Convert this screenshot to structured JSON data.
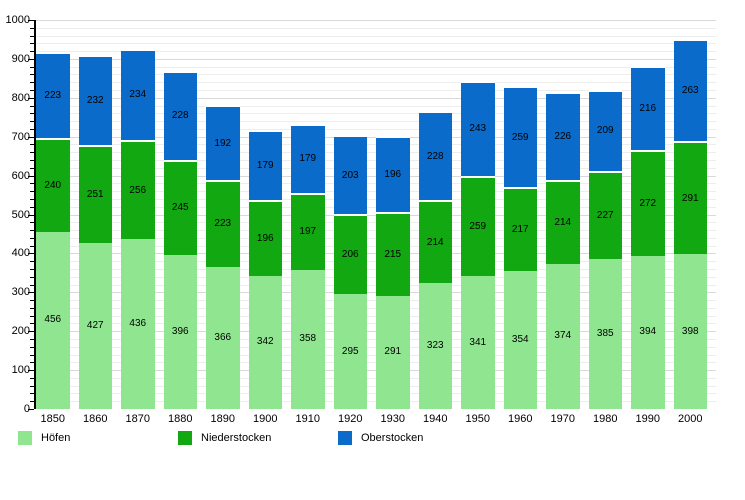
{
  "chart_data": {
    "type": "bar",
    "stacked": true,
    "title": "",
    "categories": [
      "1850",
      "1860",
      "1870",
      "1880",
      "1890",
      "1900",
      "1910",
      "1920",
      "1930",
      "1940",
      "1950",
      "1960",
      "1970",
      "1980",
      "1990",
      "2000"
    ],
    "series": [
      {
        "name": "Höfen",
        "color": "#90E690",
        "values": [
          456,
          427,
          436,
          396,
          366,
          342,
          358,
          295,
          291,
          323,
          341,
          354,
          374,
          385,
          394,
          398
        ]
      },
      {
        "name": "Niederstocken",
        "color": "#12A812",
        "values": [
          240,
          251,
          256,
          245,
          223,
          196,
          197,
          206,
          215,
          214,
          259,
          217,
          214,
          227,
          272,
          291
        ]
      },
      {
        "name": "Oberstocken",
        "color": "#0B6BCB",
        "values": [
          223,
          232,
          234,
          228,
          192,
          179,
          179,
          203,
          196,
          228,
          243,
          259,
          226,
          209,
          216,
          263
        ]
      }
    ],
    "ylim": [
      0,
      1000
    ],
    "y_major_step": 100,
    "y_minor_step": 20,
    "y_tick_labels": [
      "0",
      "100",
      "200",
      "300",
      "400",
      "500",
      "600",
      "700",
      "800",
      "900",
      "1000"
    ],
    "grid": true,
    "legend_position": "bottom",
    "bar_labels_shown": true
  },
  "style": {
    "background": "#ffffff",
    "axis_color": "#000000",
    "grid_minor_color": "#ededed",
    "grid_major_color": "#d9d9d9",
    "segment_separator_color": "#ffffff",
    "bar_label_color": "#000000"
  }
}
